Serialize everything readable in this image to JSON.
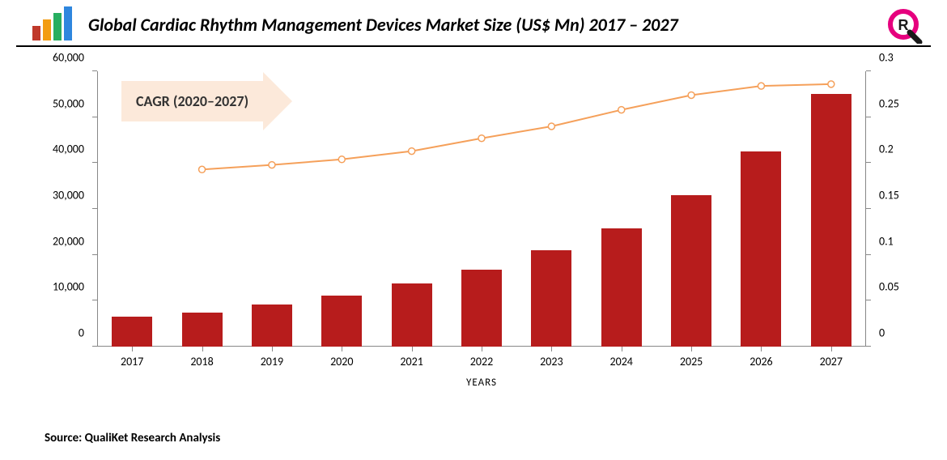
{
  "header": {
    "title": "Global Cardiac Rhythm Management Devices Market Size (US$ Mn) 2017 – 2027",
    "title_fontsize": 22,
    "title_font_style": "bold italic",
    "underline_color": "#000000",
    "logo_left": {
      "bars": [
        {
          "color": "#c0392b",
          "height": 18
        },
        {
          "color": "#f39c12",
          "height": 26
        },
        {
          "color": "#27ae60",
          "height": 34
        },
        {
          "color": "#2e86de",
          "height": 42
        }
      ]
    },
    "logo_right": {
      "ring_color": "#e6007e",
      "tail_color": "#1a1a1a",
      "letter": "R"
    }
  },
  "cagr_label": {
    "text": "CAGR (2020–2027)",
    "bg_color": "#fce9da",
    "text_color": "#333333",
    "fontsize": 18
  },
  "chart": {
    "type": "bar+line",
    "background_color": "#ffffff",
    "x": {
      "title": "YEARS",
      "categories": [
        "2017",
        "2018",
        "2019",
        "2020",
        "2021",
        "2022",
        "2023",
        "2024",
        "2025",
        "2026",
        "2027"
      ],
      "label_fontsize": 14
    },
    "y_left": {
      "min": 0,
      "max": 60000,
      "step": 10000,
      "tick_labels": [
        "0",
        "10,000",
        "20,000",
        "30,000",
        "40,000",
        "50,000",
        "60,000"
      ],
      "label_fontsize": 14
    },
    "y_right": {
      "min": 0,
      "max": 0.3,
      "step": 0.05,
      "tick_labels": [
        "0",
        "0.05",
        "0.1",
        "0.15",
        "0.2",
        "0.25",
        "0.3"
      ],
      "label_fontsize": 14
    },
    "bars": {
      "values": [
        6500,
        7500,
        9200,
        11200,
        13700,
        16800,
        21000,
        25800,
        33000,
        42500,
        55000
      ],
      "color": "#b71c1c",
      "width_ratio": 0.58
    },
    "line": {
      "start_index": 1,
      "values": [
        0.193,
        0.198,
        0.204,
        0.213,
        0.227,
        0.24,
        0.258,
        0.274,
        0.284,
        0.286
      ],
      "stroke_color": "#f5a05a",
      "stroke_width": 2,
      "marker_fill": "#ffffff",
      "marker_stroke": "#f5a05a",
      "marker_radius": 4
    },
    "axis_color": "#888888",
    "tick_length": 6
  },
  "source": {
    "text": "Source: QualiKet Research Analysis",
    "fontsize": 15,
    "weight": "bold"
  }
}
